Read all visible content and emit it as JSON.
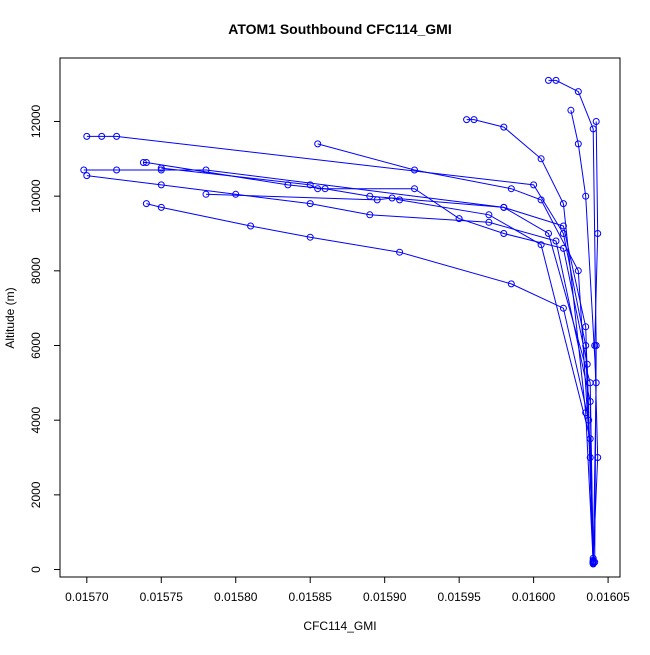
{
  "chart_data": {
    "type": "line",
    "title": "ATOM1 Southbound CFC114_GMI",
    "xlabel": "CFC114_GMI",
    "ylabel": "Altitude (m)",
    "xlim": [
      0.015682,
      0.016058
    ],
    "ylim": [
      -200,
      13700
    ],
    "xticks": [
      0.0157,
      0.01575,
      0.0158,
      0.01585,
      0.0159,
      0.01595,
      0.016,
      0.01605
    ],
    "xtick_labels": [
      "0.01570",
      "0.01575",
      "0.01580",
      "0.01585",
      "0.01590",
      "0.01595",
      "0.01600",
      "0.01605"
    ],
    "yticks": [
      0,
      2000,
      4000,
      6000,
      8000,
      10000,
      12000
    ],
    "ytick_labels": [
      "0",
      "2000",
      "4000",
      "6000",
      "8000",
      "10000",
      "12000"
    ],
    "grid": false,
    "marker": "open-circle",
    "color": "#0000ff",
    "series": [
      {
        "x": [
          0.01571,
          0.0157,
          0.01572,
          0.016,
          0.01602,
          0.016035,
          0.01604
        ],
        "y": [
          11600,
          11600,
          11600,
          10300,
          9000,
          6000,
          300
        ]
      },
      {
        "x": [
          0.015698,
          0.01572,
          0.01575,
          0.01578,
          0.01598,
          0.01601,
          0.016038,
          0.01604
        ],
        "y": [
          10700,
          10700,
          10700,
          10700,
          9700,
          9000,
          5000,
          250
        ]
      },
      {
        "x": [
          0.0157,
          0.01575,
          0.0158,
          0.01585,
          0.01589,
          0.01597,
          0.016015,
          0.016038,
          0.01604
        ],
        "y": [
          10550,
          10300,
          10050,
          9800,
          9500,
          9300,
          8800,
          4500,
          200
        ]
      },
      {
        "x": [
          0.01574,
          0.01575,
          0.01581,
          0.01585,
          0.01591,
          0.015985,
          0.01602,
          0.016037,
          0.01604
        ],
        "y": [
          9800,
          9700,
          9200,
          8900,
          8500,
          7650,
          7000,
          4000,
          180
        ]
      },
      {
        "x": [
          0.015738,
          0.01574,
          0.015835,
          0.01586,
          0.01589,
          0.01598,
          0.01602,
          0.016035,
          0.01604
        ],
        "y": [
          10900,
          10900,
          10300,
          10200,
          10000,
          9700,
          9200,
          6500,
          220
        ]
      },
      {
        "x": [
          0.01575,
          0.01585,
          0.015855,
          0.01592,
          0.01595,
          0.01598,
          0.01602,
          0.016036,
          0.01604
        ],
        "y": [
          10750,
          10300,
          10200,
          10200,
          9400,
          9000,
          8600,
          5500,
          200
        ]
      },
      {
        "x": [
          0.01578,
          0.015895,
          0.015905,
          0.01591,
          0.01597,
          0.016005,
          0.016038,
          0.01604
        ],
        "y": [
          10050,
          9900,
          9950,
          9900,
          9500,
          8700,
          3500,
          150
        ]
      },
      {
        "x": [
          0.015855,
          0.01592,
          0.015985,
          0.016005,
          0.01603,
          0.016038,
          0.01604
        ],
        "y": [
          11400,
          10700,
          10200,
          9900,
          8000,
          3000,
          150
        ]
      },
      {
        "x": [
          0.015955,
          0.01596,
          0.01598,
          0.016005,
          0.01602,
          0.016035,
          0.01604
        ],
        "y": [
          12050,
          12050,
          11850,
          11000,
          9800,
          4200,
          200
        ]
      },
      {
        "x": [
          0.01601,
          0.016015,
          0.01603,
          0.01604,
          0.016042,
          0.016041
        ],
        "y": [
          13100,
          13100,
          12800,
          11800,
          6000,
          200
        ]
      },
      {
        "x": [
          0.016025,
          0.01603,
          0.016035,
          0.016042,
          0.01604
        ],
        "y": [
          12300,
          11400,
          10000,
          5000,
          180
        ]
      },
      {
        "x": [
          0.016042,
          0.016043,
          0.016041,
          0.016043,
          0.01604
        ],
        "y": [
          12000,
          9000,
          6000,
          3000,
          200
        ]
      }
    ]
  }
}
